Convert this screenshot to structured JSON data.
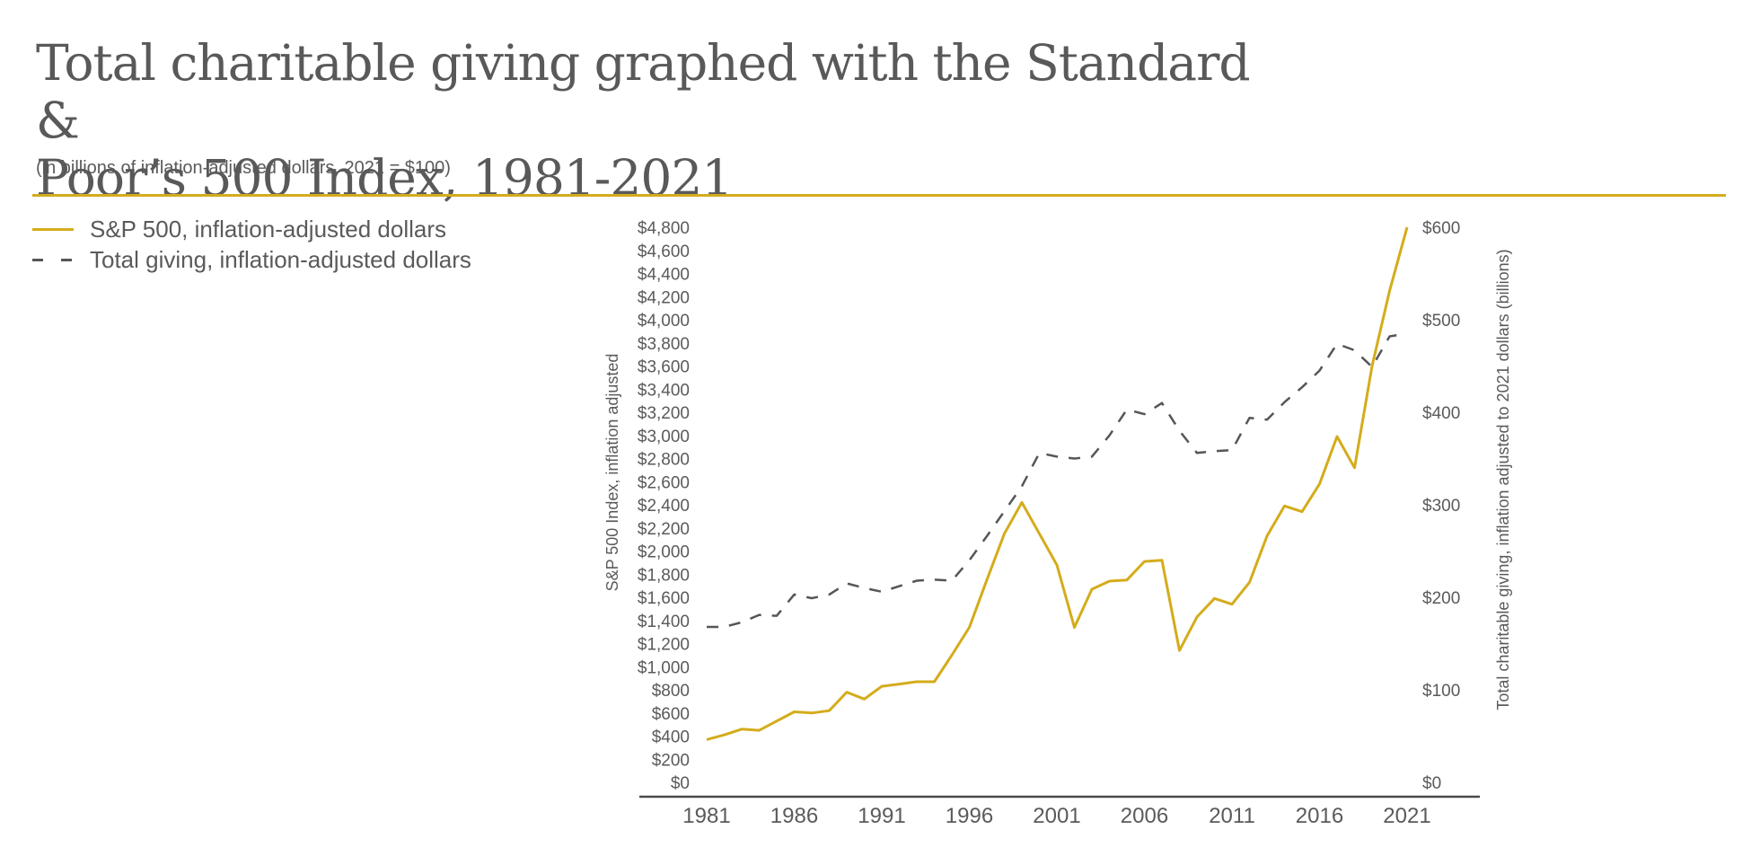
{
  "header": {
    "title_line1": "Total charitable giving graphed with the Standard &",
    "title_line2": "Poor’s 500 Index, 1981-2021",
    "subtitle": "(in billions of inflation-adjusted dollars, 2021 = $100)"
  },
  "colors": {
    "accent": "#d4ac1b",
    "dash_line": "#55565a",
    "text": "#5a5a5a",
    "axis": "#4a4a4a"
  },
  "legend": {
    "items": [
      {
        "label": "S&P 500, inflation-adjusted dollars",
        "style": "solid"
      },
      {
        "label": "Total giving, inflation-adjusted dollars",
        "style": "dashed"
      }
    ]
  },
  "chart_data": {
    "type": "line",
    "title": "Total charitable giving graphed with the Standard & Poor’s 500 Index, 1981-2021",
    "xlabel": "",
    "ylabel_left": "S&P 500 Index, inflation adjusted",
    "ylabel_right": "Total charitable giving, inflation adjusted to 2021 dollars (billions)",
    "x_ticks": [
      "1981",
      "1986",
      "1991",
      "1996",
      "2001",
      "2006",
      "2011",
      "2016",
      "2021"
    ],
    "y_left_range": [
      0,
      4800
    ],
    "y_left_ticks": [
      "$0",
      "$200",
      "$400",
      "$600",
      "$800",
      "$1,000",
      "$1,200",
      "$1,400",
      "$1,600",
      "$1,800",
      "$2,000",
      "$2,200",
      "$2,400",
      "$2,600",
      "$2,800",
      "$3,000",
      "$3,200",
      "$3,400",
      "$3,600",
      "$3,800",
      "$4,000",
      "$4,200",
      "$4,400",
      "$4,600",
      "$4,800"
    ],
    "y_right_range": [
      0,
      600
    ],
    "y_right_ticks": [
      "$0",
      "$100",
      "$200",
      "$300",
      "$400",
      "$500",
      "$600"
    ],
    "x": [
      1981,
      1982,
      1983,
      1984,
      1985,
      1986,
      1987,
      1988,
      1989,
      1990,
      1991,
      1992,
      1993,
      1994,
      1995,
      1996,
      1997,
      1998,
      1999,
      2000,
      2001,
      2002,
      2003,
      2004,
      2005,
      2006,
      2007,
      2008,
      2009,
      2010,
      2011,
      2012,
      2013,
      2014,
      2015,
      2016,
      2017,
      2018,
      2019,
      2020,
      2021
    ],
    "series": [
      {
        "name": "S&P 500, inflation-adjusted dollars",
        "axis": "left",
        "style": "solid",
        "values": [
          370,
          410,
          460,
          450,
          530,
          610,
          600,
          620,
          780,
          720,
          830,
          850,
          870,
          870,
          1100,
          1340,
          1750,
          2150,
          2420,
          2150,
          1880,
          1340,
          1670,
          1740,
          1750,
          1910,
          1920,
          1140,
          1430,
          1590,
          1540,
          1730,
          2130,
          2390,
          2340,
          2580,
          2990,
          2720,
          3600,
          4250,
          4800
        ]
      },
      {
        "name": "Total giving, inflation-adjusted dollars",
        "axis": "right",
        "style": "dashed",
        "values": [
          168,
          168,
          173,
          181,
          180,
          203,
          199,
          203,
          215,
          210,
          206,
          212,
          218,
          219,
          218,
          240,
          266,
          293,
          320,
          356,
          352,
          350,
          352,
          375,
          403,
          398,
          410,
          380,
          356,
          358,
          359,
          394,
          392,
          411,
          427,
          445,
          474,
          467,
          449,
          482,
          485
        ]
      }
    ]
  }
}
